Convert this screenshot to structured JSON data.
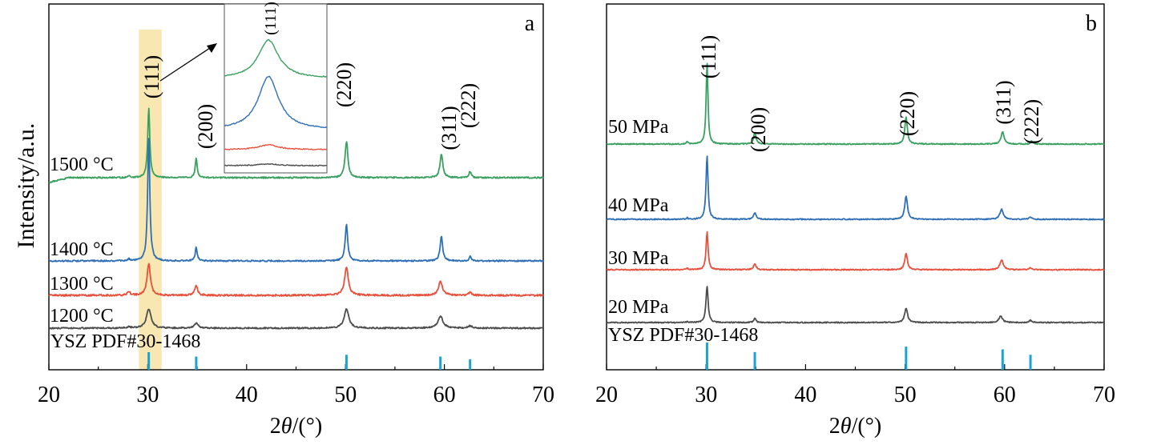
{
  "y_axis_label": "Intensity/a.u.",
  "chart_data": [
    {
      "type": "line",
      "panel_label": "a",
      "xlabel_prefix": "2",
      "xlabel_theta": "θ",
      "xlabel_suffix": "/(°)",
      "ylabel": "Intensity/a.u.",
      "xlim": [
        20,
        70
      ],
      "xticks": [
        20,
        30,
        40,
        50,
        60,
        70
      ],
      "tick_labels": [
        "20",
        "30",
        "40",
        "50",
        "60",
        "70"
      ],
      "yticks_shown": false,
      "reference": {
        "label_left": "YSZ",
        "label_right": "PDF#30-1468",
        "color": "#1ba3d6",
        "lines": [
          {
            "x": 30.1,
            "h": 1.0
          },
          {
            "x": 34.9,
            "h": 0.75
          },
          {
            "x": 50.1,
            "h": 0.85
          },
          {
            "x": 59.6,
            "h": 0.75
          },
          {
            "x": 62.6,
            "h": 0.6
          }
        ]
      },
      "highlight": {
        "from": 29.1,
        "to": 31.4,
        "color": "#f7e3a3"
      },
      "peak_labels": [
        {
          "text": "(111)",
          "x": 30.1
        },
        {
          "text": "(200)",
          "x": 34.9
        },
        {
          "text": "(220)",
          "x": 50.1
        },
        {
          "text": "(311)",
          "x": 59.9
        },
        {
          "text": "(222)",
          "x": 62.7
        }
      ],
      "series": [
        {
          "name": "1500 °C",
          "color": "#3aa060",
          "baseline": 0.32,
          "noise": 0.8,
          "bg_step": 6,
          "peaks": [
            {
              "x": 30.1,
              "h": 1.8,
              "w": 0.13
            },
            {
              "x": 34.9,
              "h": 0.5,
              "w": 0.12
            },
            {
              "x": 50.1,
              "h": 0.95,
              "w": 0.17
            },
            {
              "x": 59.7,
              "h": 0.62,
              "w": 0.17
            },
            {
              "x": 62.6,
              "h": 0.15,
              "w": 0.14
            },
            {
              "x": 28.1,
              "h": 0.05,
              "w": 0.1
            }
          ]
        },
        {
          "name": "1400 °C",
          "color": "#2f6fb5",
          "baseline": 0.06,
          "noise": 0.8,
          "bg_step": 0,
          "peaks": [
            {
              "x": 30.1,
              "h": 3.2,
              "w": 0.13
            },
            {
              "x": 34.9,
              "h": 0.35,
              "w": 0.12
            },
            {
              "x": 50.1,
              "h": 0.95,
              "w": 0.15
            },
            {
              "x": 59.7,
              "h": 0.65,
              "w": 0.15
            },
            {
              "x": 62.6,
              "h": 0.12,
              "w": 0.12
            },
            {
              "x": 28.1,
              "h": 0.05,
              "w": 0.1
            }
          ]
        },
        {
          "name": "1300 °C",
          "color": "#e8503c",
          "baseline": 0.0,
          "noise": 1.0,
          "bg_step": 0,
          "peaks": [
            {
              "x": 30.1,
              "h": 0.83,
              "w": 0.2
            },
            {
              "x": 34.9,
              "h": 0.25,
              "w": 0.18
            },
            {
              "x": 50.1,
              "h": 0.75,
              "w": 0.22
            },
            {
              "x": 59.6,
              "h": 0.35,
              "w": 0.25
            },
            {
              "x": 62.6,
              "h": 0.07,
              "w": 0.2
            },
            {
              "x": 28.1,
              "h": 0.1,
              "w": 0.15
            }
          ]
        },
        {
          "name": "1200 °C",
          "color": "#4d4d4d",
          "baseline": 0.0,
          "noise": 0.8,
          "bg_step": 0,
          "peaks": [
            {
              "x": 30.1,
              "h": 0.6,
              "w": 0.28
            },
            {
              "x": 34.9,
              "h": 0.15,
              "w": 0.25
            },
            {
              "x": 50.1,
              "h": 0.6,
              "w": 0.28
            },
            {
              "x": 59.6,
              "h": 0.38,
              "w": 0.3
            },
            {
              "x": 62.6,
              "h": 0.07,
              "w": 0.25
            },
            {
              "x": 28.1,
              "h": 0.04,
              "w": 0.2
            }
          ]
        }
      ],
      "inset": {
        "peak_label": "(111)",
        "series": [
          {
            "color": "#3aa060",
            "peak": 0.8
          },
          {
            "color": "#2f6fb5",
            "peak": 0.95
          },
          {
            "color": "#e8503c",
            "peak": 0.3
          },
          {
            "color": "#4d4d4d",
            "peak": 0.15
          }
        ]
      }
    },
    {
      "type": "line",
      "panel_label": "b",
      "xlabel_prefix": "2",
      "xlabel_theta": "θ",
      "xlabel_suffix": "/(°)",
      "xlim": [
        20,
        70
      ],
      "xticks": [
        20,
        30,
        40,
        50,
        60,
        70
      ],
      "tick_labels": [
        "20",
        "30",
        "40",
        "50",
        "60",
        "70"
      ],
      "yticks_shown": false,
      "reference": {
        "label_left": "YSZ",
        "label_right": "PDF#30-1468",
        "color": "#1ba3d6",
        "lines": [
          {
            "x": 30.1,
            "h": 1.0
          },
          {
            "x": 34.9,
            "h": 0.65
          },
          {
            "x": 50.1,
            "h": 0.85
          },
          {
            "x": 59.8,
            "h": 0.75
          },
          {
            "x": 62.6,
            "h": 0.55
          }
        ]
      },
      "peak_labels": [
        {
          "text": "(111)",
          "x": 30.1
        },
        {
          "text": "(200)",
          "x": 35.3
        },
        {
          "text": "(220)",
          "x": 50.0
        },
        {
          "text": "(311)",
          "x": 60.0
        },
        {
          "text": "(222)",
          "x": 62.9
        }
      ],
      "series": [
        {
          "name": "50 MPa",
          "color": "#3aa060",
          "baseline": 0.0,
          "noise": 0.6,
          "bg_step": 0,
          "peaks": [
            {
              "x": 30.1,
              "h": 3.65,
              "w": 0.11
            },
            {
              "x": 34.9,
              "h": 0.5,
              "w": 0.15
            },
            {
              "x": 50.1,
              "h": 1.2,
              "w": 0.15
            },
            {
              "x": 59.8,
              "h": 0.55,
              "w": 0.18
            },
            {
              "x": 62.7,
              "h": 0.15,
              "w": 0.13
            },
            {
              "x": 28.1,
              "h": 0.1,
              "w": 0.1
            }
          ]
        },
        {
          "name": "40 MPa",
          "color": "#2f6fb5",
          "baseline": 0.0,
          "noise": 0.6,
          "bg_step": 0,
          "peaks": [
            {
              "x": 30.1,
              "h": 2.83,
              "w": 0.12
            },
            {
              "x": 34.9,
              "h": 0.3,
              "w": 0.15
            },
            {
              "x": 50.1,
              "h": 1.05,
              "w": 0.16
            },
            {
              "x": 59.7,
              "h": 0.45,
              "w": 0.2
            },
            {
              "x": 62.6,
              "h": 0.1,
              "w": 0.14
            },
            {
              "x": 28.1,
              "h": 0.06,
              "w": 0.1
            }
          ]
        },
        {
          "name": "30 MPa",
          "color": "#e8503c",
          "baseline": 0.0,
          "noise": 0.6,
          "bg_step": 0,
          "peaks": [
            {
              "x": 30.1,
              "h": 1.7,
              "w": 0.12
            },
            {
              "x": 34.9,
              "h": 0.28,
              "w": 0.15
            },
            {
              "x": 50.1,
              "h": 0.72,
              "w": 0.16
            },
            {
              "x": 59.7,
              "h": 0.45,
              "w": 0.2
            },
            {
              "x": 62.6,
              "h": 0.08,
              "w": 0.15
            },
            {
              "x": 28.1,
              "h": 0.07,
              "w": 0.1
            }
          ]
        },
        {
          "name": "20 MPa",
          "color": "#4d4d4d",
          "baseline": 0.0,
          "noise": 0.6,
          "bg_step": 0,
          "peaks": [
            {
              "x": 30.1,
              "h": 1.63,
              "w": 0.13
            },
            {
              "x": 34.9,
              "h": 0.17,
              "w": 0.15
            },
            {
              "x": 50.1,
              "h": 0.65,
              "w": 0.17
            },
            {
              "x": 59.6,
              "h": 0.28,
              "w": 0.22
            },
            {
              "x": 62.6,
              "h": 0.1,
              "w": 0.16
            },
            {
              "x": 28.1,
              "h": 0.05,
              "w": 0.1
            }
          ]
        }
      ]
    }
  ]
}
